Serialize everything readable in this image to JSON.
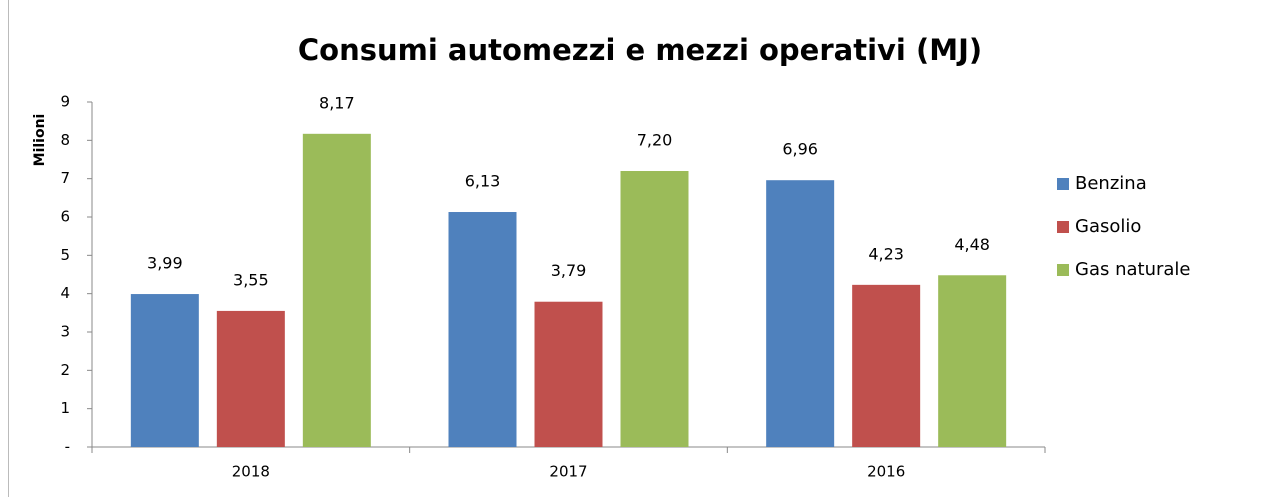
{
  "chart_data": {
    "type": "bar",
    "title": "Consumi automezzi e mezzi operativi (MJ)",
    "y_label": "Milioni",
    "categories": [
      "2018",
      "2017",
      "2016"
    ],
    "series": [
      {
        "name": "Benzina",
        "color": "#4f81bd",
        "values": [
          3.99,
          6.13,
          6.96
        ],
        "value_labels": [
          "3,99",
          "6,13",
          "6,96"
        ]
      },
      {
        "name": "Gasolio",
        "color": "#c0504d",
        "values": [
          3.55,
          3.79,
          4.23
        ],
        "value_labels": [
          "3,55",
          "3,79",
          "4,23"
        ]
      },
      {
        "name": "Gas naturale",
        "color": "#9bbb59",
        "values": [
          8.17,
          7.2,
          4.48
        ],
        "value_labels": [
          "8,17",
          "7,20",
          "4,48"
        ]
      }
    ],
    "ylim": [
      0,
      9
    ],
    "yticks": [
      {
        "value": 0,
        "label": "-"
      },
      1,
      2,
      3,
      4,
      5,
      6,
      7,
      8,
      9
    ],
    "grid": false,
    "legend": "right"
  }
}
